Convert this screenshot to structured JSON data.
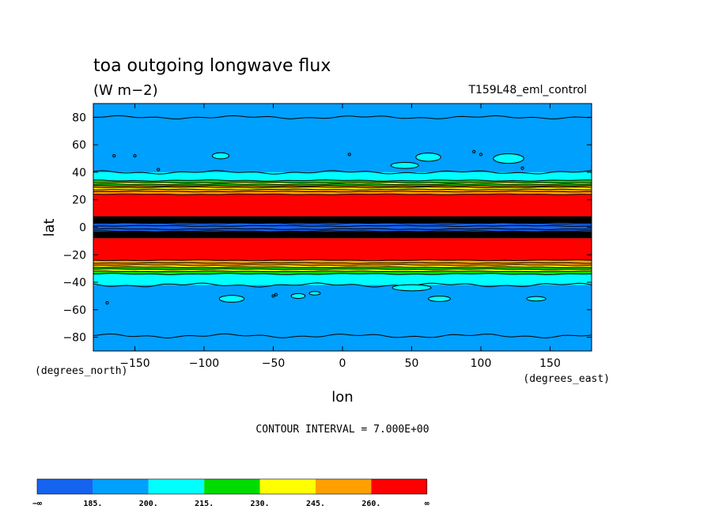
{
  "chart_data": {
    "type": "heatmap",
    "title": "toa outgoing longwave flux",
    "units": "(W m−2)",
    "experiment": "T159L48_eml_control",
    "xlabel": "lon",
    "ylabel": "lat",
    "x_units": "(degrees_east)",
    "y_units": "(degrees_north)",
    "xlim": [
      -180,
      180
    ],
    "ylim": [
      -90,
      90
    ],
    "xticks": [
      "−150",
      "−100",
      "−50",
      "0",
      "50",
      "100",
      "150"
    ],
    "xtick_values": [
      -150,
      -100,
      -50,
      0,
      50,
      100,
      150
    ],
    "yticks": [
      "80",
      "60",
      "40",
      "20",
      "0",
      "−20",
      "−40",
      "−60",
      "−80"
    ],
    "ytick_values": [
      80,
      60,
      40,
      20,
      0,
      -20,
      -40,
      -60,
      -80
    ],
    "contour_interval_text": "CONTOUR INTERVAL = 7.000E+00",
    "colorbar": {
      "labels": [
        "−∞",
        "185.",
        "200.",
        "215.",
        "230.",
        "245.",
        "260.",
        "∞"
      ],
      "colors": [
        "#1464f0",
        "#00a0ff",
        "#00ffff",
        "#00dc00",
        "#ffff00",
        "#ffa000",
        "#ff0000"
      ]
    },
    "zonal_bands": [
      {
        "lat_from": 90,
        "lat_to": 40,
        "level": "185-200"
      },
      {
        "lat_from": 40,
        "lat_to": 34,
        "level": "200-215"
      },
      {
        "lat_from": 34,
        "lat_to": 24,
        "level": "215-260"
      },
      {
        "lat_from": 24,
        "lat_to": 8,
        "level": ">260"
      },
      {
        "lat_from": 8,
        "lat_to": 3,
        "level": "contour-dense"
      },
      {
        "lat_from": 3,
        "lat_to": -3,
        "level": "<185"
      },
      {
        "lat_from": -3,
        "lat_to": -8,
        "level": "contour-dense"
      },
      {
        "lat_from": -8,
        "lat_to": -24,
        "level": ">260"
      },
      {
        "lat_from": -24,
        "lat_to": -34,
        "level": "215-260"
      },
      {
        "lat_from": -34,
        "lat_to": -42,
        "level": "200-215"
      },
      {
        "lat_from": -42,
        "lat_to": -90,
        "level": "185-200"
      }
    ]
  }
}
